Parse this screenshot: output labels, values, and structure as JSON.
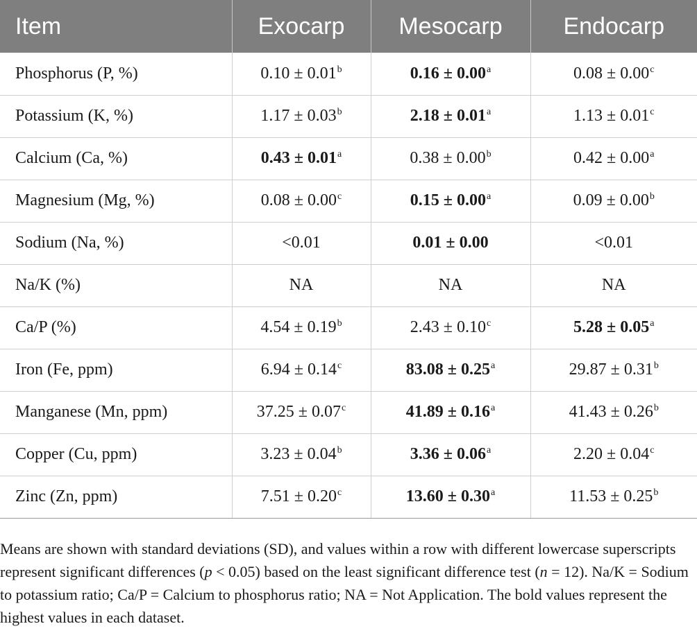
{
  "table": {
    "headers": [
      "Item",
      "Exocarp",
      "Mesocarp",
      "Endocarp"
    ],
    "rows": [
      {
        "item": "Phosphorus (P, %)",
        "cells": [
          {
            "value": "0.10 ± 0.01",
            "sup": "b",
            "bold": false
          },
          {
            "value": "0.16 ± 0.00",
            "sup": "a",
            "bold": true
          },
          {
            "value": "0.08 ± 0.00",
            "sup": "c",
            "bold": false
          }
        ]
      },
      {
        "item": "Potassium (K, %)",
        "cells": [
          {
            "value": "1.17 ± 0.03",
            "sup": "b",
            "bold": false
          },
          {
            "value": "2.18 ± 0.01",
            "sup": "a",
            "bold": true
          },
          {
            "value": "1.13 ± 0.01",
            "sup": "c",
            "bold": false
          }
        ]
      },
      {
        "item": "Calcium (Ca, %)",
        "cells": [
          {
            "value": "0.43 ± 0.01",
            "sup": "a",
            "bold": true
          },
          {
            "value": "0.38 ± 0.00",
            "sup": "b",
            "bold": false
          },
          {
            "value": "0.42 ± 0.00",
            "sup": "a",
            "bold": false
          }
        ]
      },
      {
        "item": "Magnesium (Mg, %)",
        "cells": [
          {
            "value": "0.08 ± 0.00",
            "sup": "c",
            "bold": false
          },
          {
            "value": "0.15 ± 0.00",
            "sup": "a",
            "bold": true
          },
          {
            "value": "0.09 ± 0.00",
            "sup": "b",
            "bold": false
          }
        ]
      },
      {
        "item": "Sodium (Na, %)",
        "cells": [
          {
            "value": "<0.01",
            "sup": "",
            "bold": false
          },
          {
            "value": "0.01 ± 0.00",
            "sup": "",
            "bold": true
          },
          {
            "value": "<0.01",
            "sup": "",
            "bold": false
          }
        ]
      },
      {
        "item": "Na/K (%)",
        "cells": [
          {
            "value": "NA",
            "sup": "",
            "bold": false
          },
          {
            "value": "NA",
            "sup": "",
            "bold": false
          },
          {
            "value": "NA",
            "sup": "",
            "bold": false
          }
        ]
      },
      {
        "item": "Ca/P (%)",
        "cells": [
          {
            "value": "4.54 ± 0.19",
            "sup": "b",
            "bold": false
          },
          {
            "value": "2.43 ± 0.10",
            "sup": "c",
            "bold": false
          },
          {
            "value": "5.28 ± 0.05",
            "sup": "a",
            "bold": true
          }
        ]
      },
      {
        "item": "Iron (Fe, ppm)",
        "cells": [
          {
            "value": "6.94 ± 0.14",
            "sup": "c",
            "bold": false
          },
          {
            "value": "83.08 ± 0.25",
            "sup": "a",
            "bold": true
          },
          {
            "value": "29.87 ± 0.31",
            "sup": "b",
            "bold": false
          }
        ]
      },
      {
        "item": "Manganese (Mn, ppm)",
        "cells": [
          {
            "value": "37.25 ± 0.07",
            "sup": "c",
            "bold": false
          },
          {
            "value": "41.89 ± 0.16",
            "sup": "a",
            "bold": true
          },
          {
            "value": "41.43 ± 0.26",
            "sup": "b",
            "bold": false
          }
        ]
      },
      {
        "item": "Copper (Cu, ppm)",
        "cells": [
          {
            "value": "3.23 ± 0.04",
            "sup": "b",
            "bold": false
          },
          {
            "value": "3.36 ± 0.06",
            "sup": "a",
            "bold": true
          },
          {
            "value": "2.20 ± 0.04",
            "sup": "c",
            "bold": false
          }
        ]
      },
      {
        "item": "Zinc (Zn, ppm)",
        "cells": [
          {
            "value": "7.51 ± 0.20",
            "sup": "c",
            "bold": false
          },
          {
            "value": "13.60 ± 0.30",
            "sup": "a",
            "bold": true
          },
          {
            "value": "11.53 ± 0.25",
            "sup": "b",
            "bold": false
          }
        ]
      }
    ]
  },
  "footnote": {
    "part1": "Means are shown with standard deviations (SD), and values within a row with different lowercase superscripts represent significant differences (",
    "p": "p",
    "part2": " < 0.05) based on the least significant difference test (",
    "n": "n",
    "part3": " = 12). Na/K = Sodium to potassium ratio; Ca/P = Calcium to phosphorus ratio; NA = Not Application. The bold values represent the highest values in each dataset."
  }
}
